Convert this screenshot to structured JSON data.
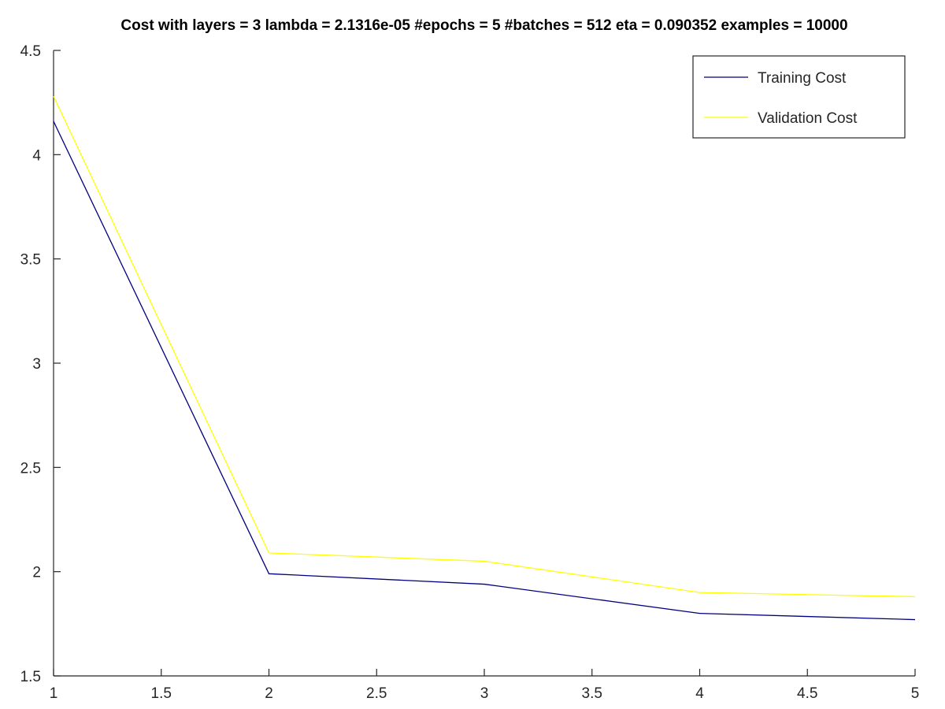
{
  "chart_data": {
    "type": "line",
    "title": "Cost with layers = 3 lambda = 2.1316e-05 #epochs = 5 #batches = 512 eta = 0.090352 examples = 10000",
    "xlabel": "",
    "ylabel": "",
    "xlim": [
      1,
      5
    ],
    "ylim": [
      1.5,
      4.5
    ],
    "x_ticks": [
      1,
      1.5,
      2,
      2.5,
      3,
      3.5,
      4,
      4.5,
      5
    ],
    "x_tick_labels": [
      "1",
      "1.5",
      "2",
      "2.5",
      "3",
      "3.5",
      "4",
      "4.5",
      "5"
    ],
    "y_ticks": [
      1.5,
      2,
      2.5,
      3,
      3.5,
      4,
      4.5
    ],
    "y_tick_labels": [
      "1.5",
      "2",
      "2.5",
      "3",
      "3.5",
      "4",
      "4.5"
    ],
    "x": [
      1,
      2,
      3,
      4,
      5
    ],
    "series": [
      {
        "name": "Training Cost",
        "color": "#00007f",
        "values": [
          4.16,
          1.99,
          1.94,
          1.8,
          1.77
        ]
      },
      {
        "name": "Validation Cost",
        "color": "#ffff00",
        "values": [
          4.28,
          2.09,
          2.05,
          1.9,
          1.88
        ]
      }
    ],
    "grid": false,
    "legend_position": "top-right"
  }
}
